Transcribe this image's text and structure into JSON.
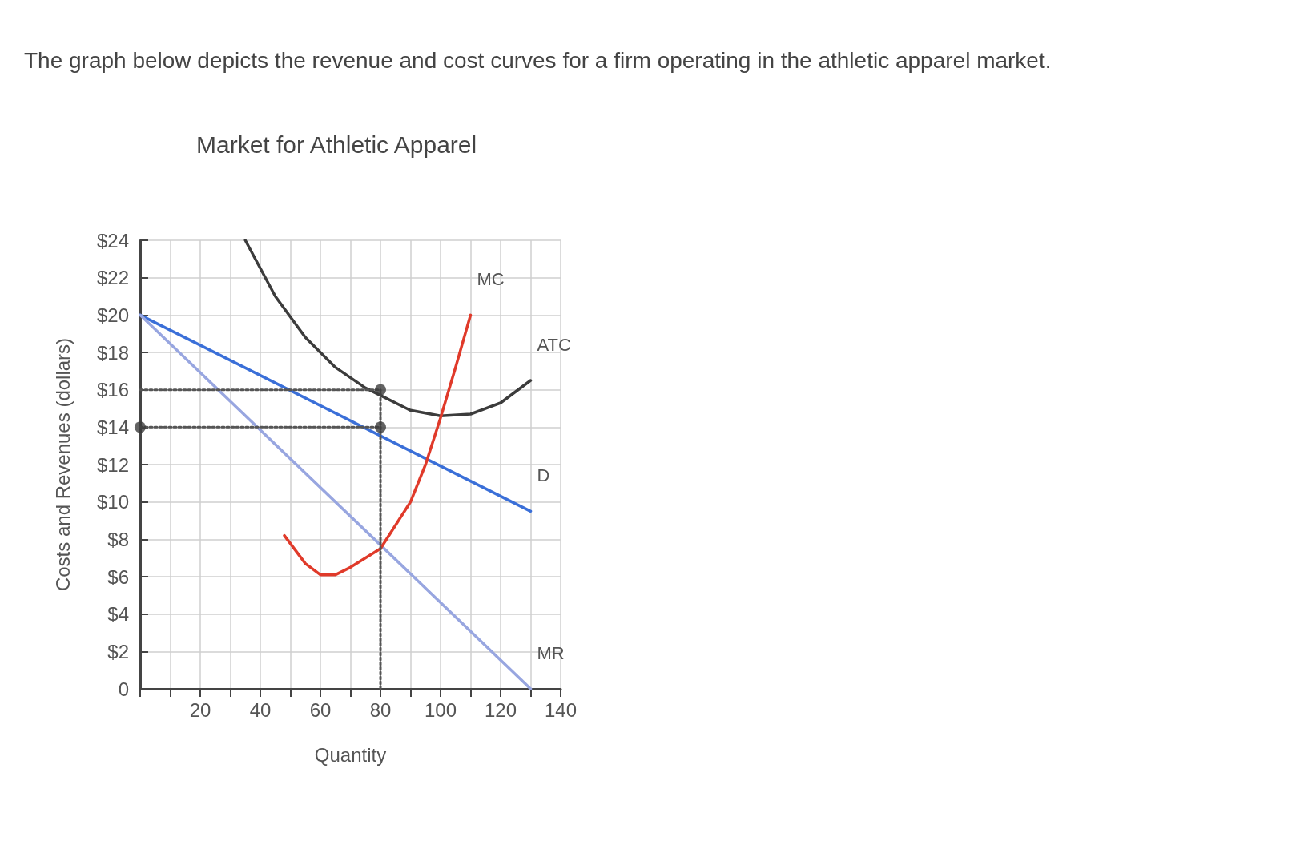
{
  "chart_data": {
    "type": "line",
    "title": "Market for Athletic Apparel",
    "xlabel": "Quantity",
    "ylabel": "Costs and Revenues (dollars)",
    "annotations": [
      "The graph below depicts the revenue and cost curves for a firm operating in the athletic apparel market."
    ],
    "xlim": [
      0,
      140
    ],
    "ylim": [
      0,
      24
    ],
    "xticks": [
      {
        "value": 0,
        "label": null
      },
      {
        "value": 10,
        "label": null
      },
      20,
      {
        "value": 30,
        "label": null
      },
      40,
      {
        "value": 50,
        "label": null
      },
      60,
      {
        "value": 70,
        "label": null
      },
      80,
      {
        "value": 90,
        "label": null
      },
      100,
      {
        "value": 110,
        "label": null
      },
      120,
      {
        "value": 130,
        "label": null
      },
      140
    ],
    "yticks": [
      0,
      {
        "value": 2,
        "label": "$2"
      },
      {
        "value": 4,
        "label": "$4"
      },
      {
        "value": 6,
        "label": "$6"
      },
      {
        "value": 8,
        "label": "$8"
      },
      {
        "value": 10,
        "label": "$10"
      },
      {
        "value": 12,
        "label": "$12"
      },
      {
        "value": 14,
        "label": "$14"
      },
      {
        "value": 16,
        "label": "$16"
      },
      {
        "value": 18,
        "label": "$18"
      },
      {
        "value": 20,
        "label": "$20"
      },
      {
        "value": 22,
        "label": "$22"
      },
      {
        "value": 24,
        "label": "$24"
      }
    ],
    "grid": true,
    "marker": "none",
    "line_style": "solid",
    "legend": false,
    "series": [
      {
        "name": "D",
        "color": "#3a6fd8",
        "x": [
          0,
          130
        ],
        "values": [
          20,
          9.5
        ]
      },
      {
        "name": "MR",
        "color": "#98a6e0",
        "x": [
          0,
          130
        ],
        "values": [
          20,
          0
        ]
      },
      {
        "name": "ATC",
        "color": "#3c3c3c",
        "x": [
          35,
          45,
          55,
          65,
          75,
          80,
          90,
          100,
          110,
          120,
          130
        ],
        "values": [
          24,
          21,
          18.8,
          17.2,
          16.1,
          15.7,
          14.9,
          14.6,
          14.7,
          15.3,
          16.5
        ]
      },
      {
        "name": "MC",
        "color": "#e03a2a",
        "x": [
          48,
          55,
          60,
          65,
          70,
          80,
          90,
          95,
          100,
          105,
          110
        ],
        "values": [
          8.2,
          6.7,
          6.1,
          6.1,
          6.5,
          7.5,
          10,
          12,
          14.5,
          17.2,
          20
        ]
      },
      {
        "color": "#555555",
        "line_style": "dotted",
        "x": [
          0,
          80
        ],
        "values": [
          16,
          16
        ]
      },
      {
        "color": "#555555",
        "line_style": "dotted",
        "x": [
          0,
          80
        ],
        "values": [
          14,
          14
        ]
      },
      {
        "color": "#555555",
        "line_style": "dotted",
        "x": [
          80,
          80
        ],
        "values": [
          0,
          16
        ]
      },
      {
        "type": "scatter",
        "color": "#3c3c3c",
        "marker": "circle",
        "x": [
          0,
          80,
          80
        ],
        "values": [
          14,
          14,
          16
        ]
      }
    ]
  }
}
